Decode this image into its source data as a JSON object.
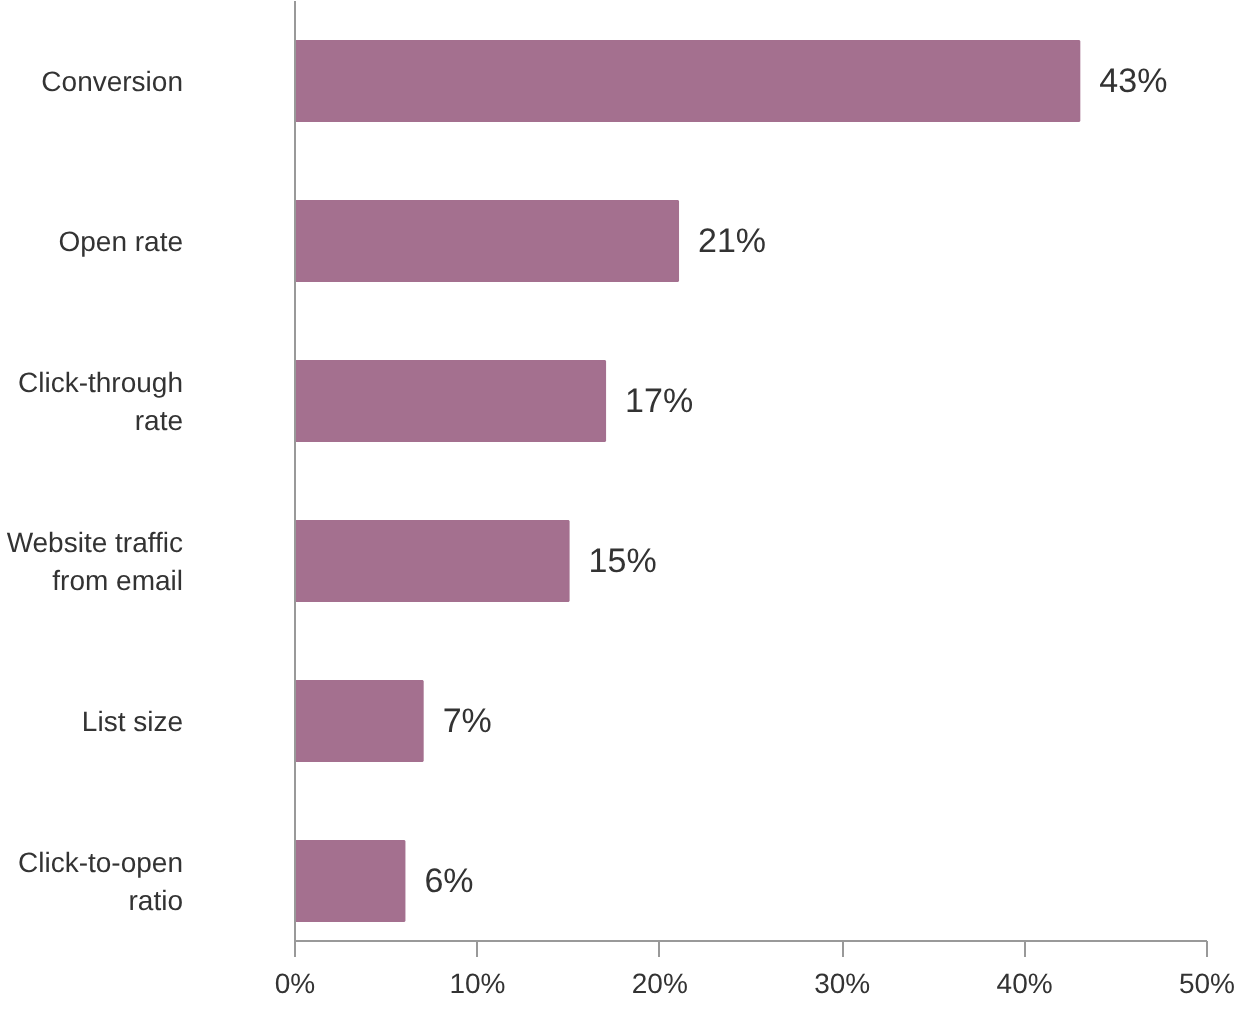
{
  "chart_data": {
    "type": "bar",
    "orientation": "horizontal",
    "categories": [
      "Conversion",
      "Open rate",
      "Click-through\nrate",
      "Website traffic\nfrom email",
      "List size",
      "Click-to-open\nratio"
    ],
    "values": [
      43,
      21,
      17,
      15,
      7,
      6
    ],
    "value_labels": [
      "43%",
      "21%",
      "17%",
      "15%",
      "7%",
      "6%"
    ],
    "color": "#a4708f",
    "xlim": [
      0,
      50
    ],
    "xticks": [
      {
        "value": 0,
        "label": "0%"
      },
      {
        "value": 10,
        "label": "10%"
      },
      {
        "value": 20,
        "label": "20%"
      },
      {
        "value": 30,
        "label": "30%"
      },
      {
        "value": 40,
        "label": "40%"
      },
      {
        "value": 50,
        "label": "50%"
      }
    ],
    "grid": false
  }
}
